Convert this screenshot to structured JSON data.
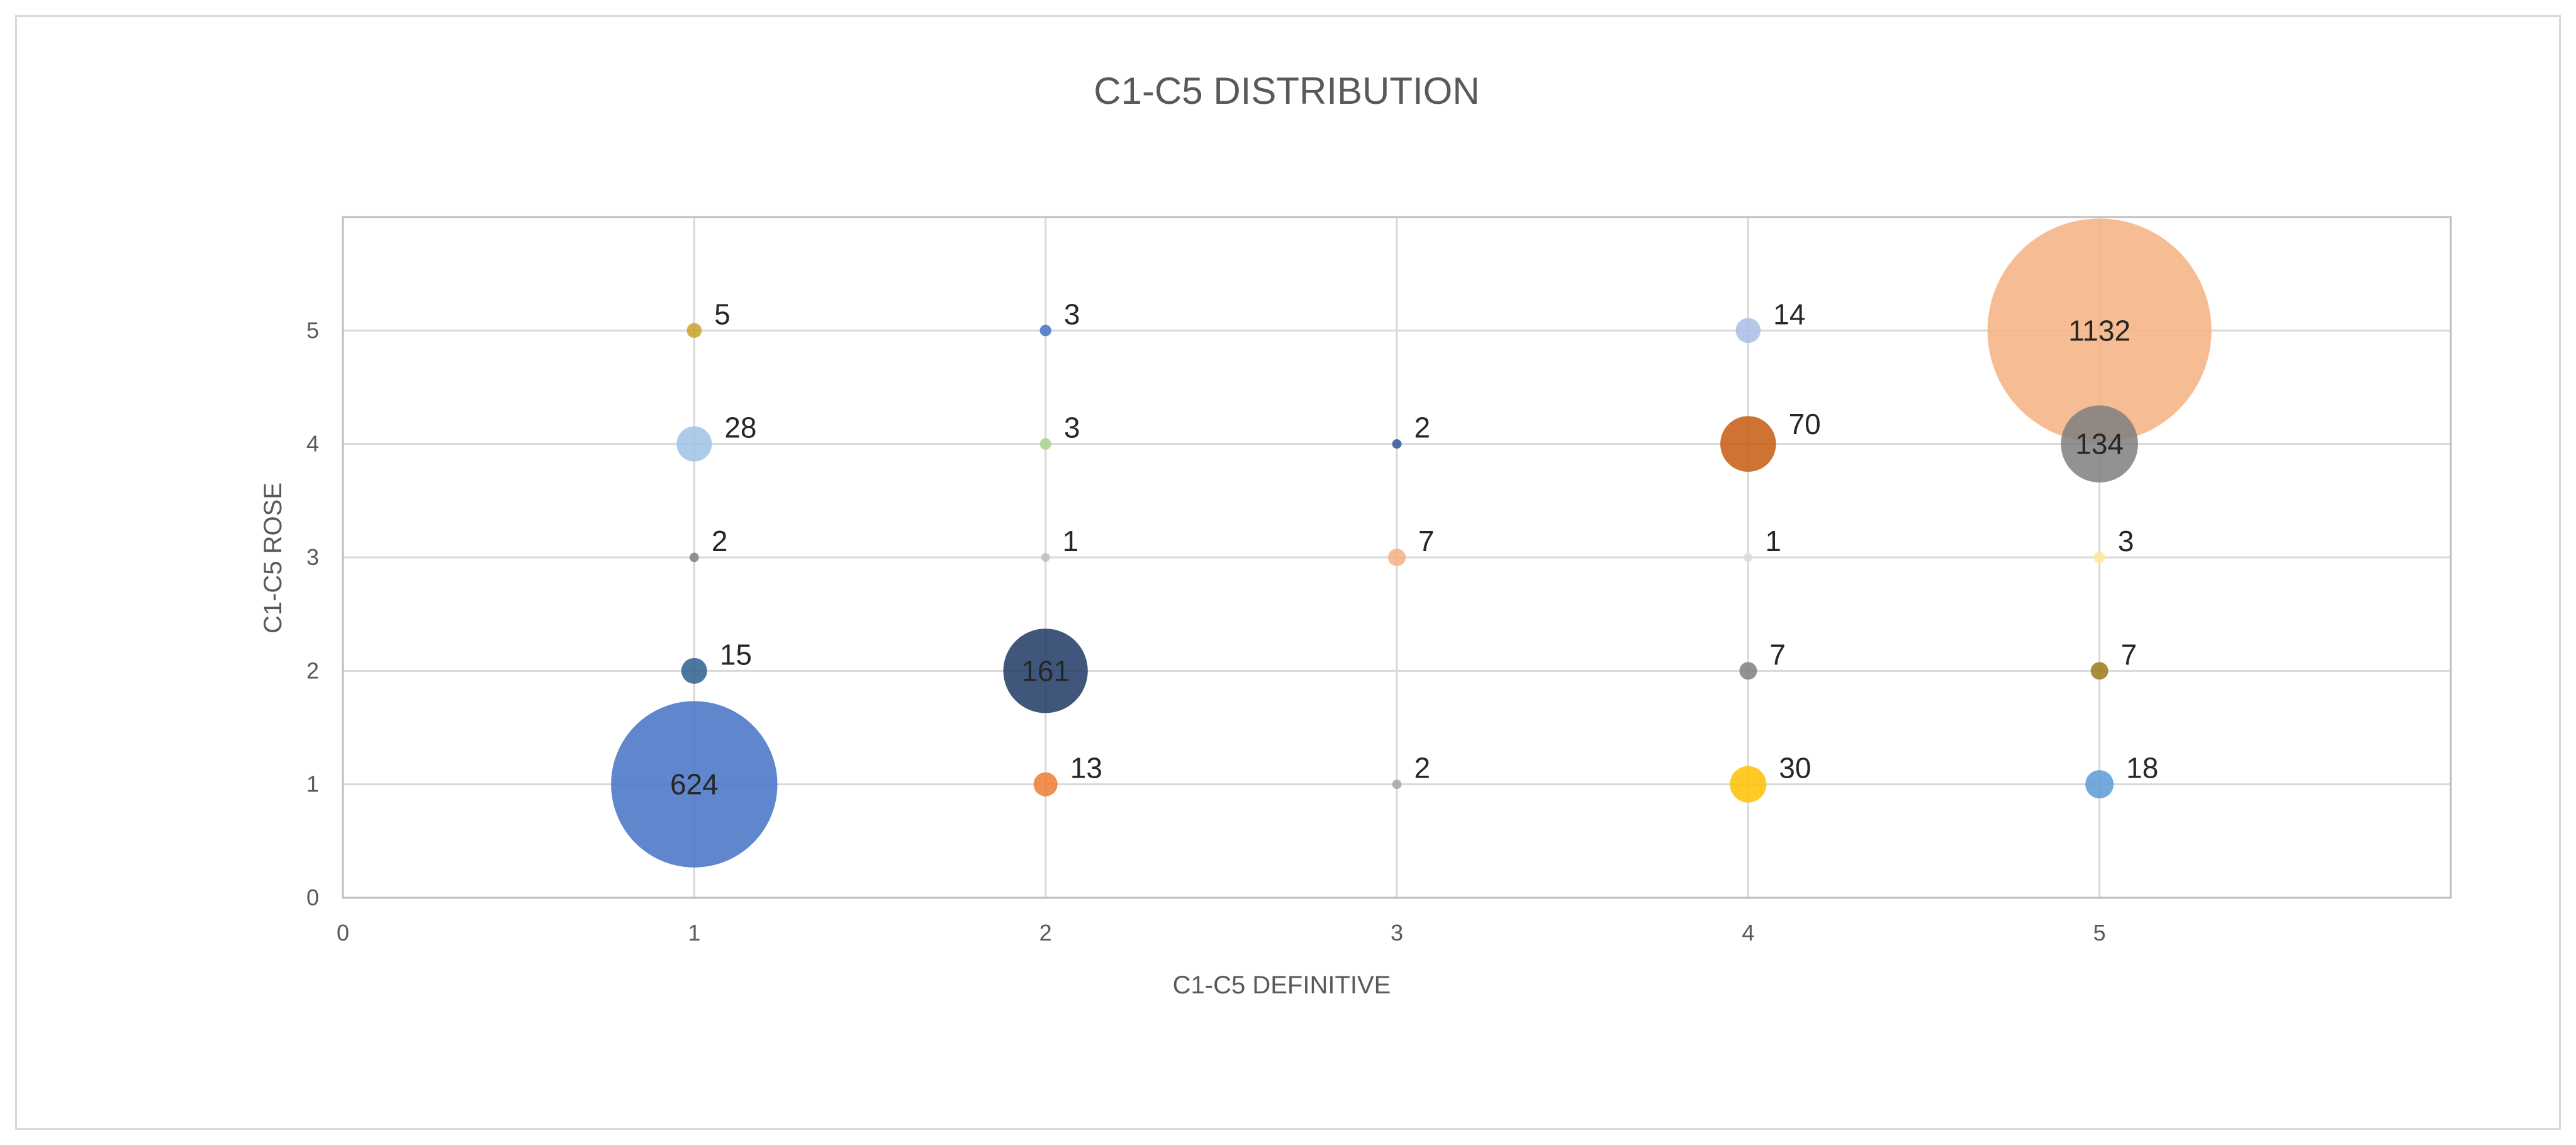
{
  "chart_data": {
    "type": "bubble",
    "title": "C1-C5 DISTRIBUTION",
    "xlabel": "C1-C5 DEFINITIVE",
    "ylabel": "C1-C5 ROSE",
    "xlim": [
      0,
      6
    ],
    "ylim": [
      0,
      6
    ],
    "xticks": [
      0,
      1,
      2,
      3,
      4,
      5
    ],
    "yticks": [
      0,
      1,
      2,
      3,
      4,
      5
    ],
    "grid": true,
    "points": [
      {
        "x": 1,
        "y": 5,
        "size": 5,
        "label": "5",
        "color": "#c9a227"
      },
      {
        "x": 1,
        "y": 4,
        "size": 28,
        "label": "28",
        "color": "#9dc3e6"
      },
      {
        "x": 1,
        "y": 3,
        "size": 2,
        "label": "2",
        "color": "#7f7f7f"
      },
      {
        "x": 1,
        "y": 2,
        "size": 15,
        "label": "15",
        "color": "#2f5f8f"
      },
      {
        "x": 1,
        "y": 1,
        "size": 624,
        "label": "624",
        "color": "#4472c4"
      },
      {
        "x": 2,
        "y": 5,
        "size": 3,
        "label": "3",
        "color": "#4472c4"
      },
      {
        "x": 2,
        "y": 4,
        "size": 3,
        "label": "3",
        "color": "#a9d18e"
      },
      {
        "x": 2,
        "y": 3,
        "size": 1,
        "label": "1",
        "color": "#bfbfbf"
      },
      {
        "x": 2,
        "y": 2,
        "size": 161,
        "label": "161",
        "color": "#203864"
      },
      {
        "x": 2,
        "y": 1,
        "size": 13,
        "label": "13",
        "color": "#ed7d31"
      },
      {
        "x": 3,
        "y": 4,
        "size": 2,
        "label": "2",
        "color": "#2f5597"
      },
      {
        "x": 3,
        "y": 3,
        "size": 7,
        "label": "7",
        "color": "#f4b183"
      },
      {
        "x": 3,
        "y": 1,
        "size": 2,
        "label": "2",
        "color": "#a6a6a6"
      },
      {
        "x": 4,
        "y": 5,
        "size": 14,
        "label": "14",
        "color": "#a9bde6"
      },
      {
        "x": 4,
        "y": 4,
        "size": 70,
        "label": "70",
        "color": "#c55a11"
      },
      {
        "x": 4,
        "y": 3,
        "size": 1,
        "label": "1",
        "color": "#d9d9d9"
      },
      {
        "x": 4,
        "y": 2,
        "size": 7,
        "label": "7",
        "color": "#7f7f7f"
      },
      {
        "x": 4,
        "y": 1,
        "size": 30,
        "label": "30",
        "color": "#ffc000"
      },
      {
        "x": 5,
        "y": 5,
        "size": 1132,
        "label": "1132",
        "color": "#f4b183"
      },
      {
        "x": 5,
        "y": 4,
        "size": 134,
        "label": "134",
        "color": "#7f7f7f"
      },
      {
        "x": 5,
        "y": 3,
        "size": 3,
        "label": "3",
        "color": "#ffe699"
      },
      {
        "x": 5,
        "y": 2,
        "size": 7,
        "label": "7",
        "color": "#9c7a1a"
      },
      {
        "x": 5,
        "y": 1,
        "size": 18,
        "label": "18",
        "color": "#5b9bd5"
      }
    ]
  }
}
